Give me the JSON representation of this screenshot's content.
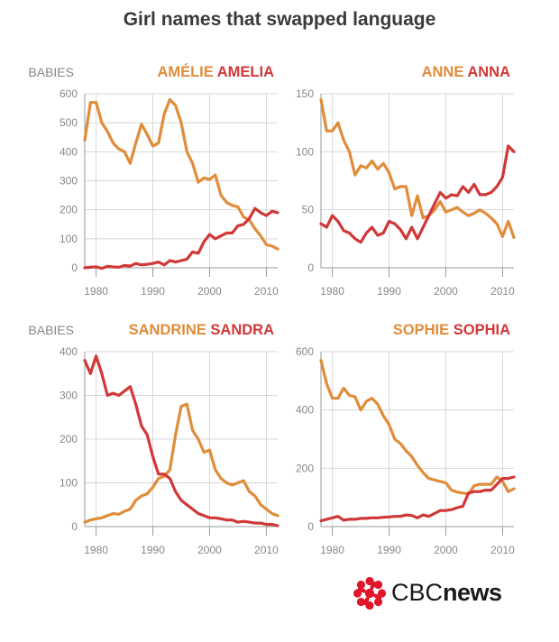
{
  "title": "Girl names that swapped language",
  "colors": {
    "french": "#e08c3a",
    "english": "#d03838",
    "grid": "#d8d8d8",
    "axis": "#999999",
    "tick": "#888888",
    "logo_red": "#e0162b"
  },
  "logo": {
    "brand": "CBC",
    "word": "news",
    "icon": "cbc-gem-icon"
  },
  "chart_data": [
    {
      "type": "line",
      "ylabel": "BABIES",
      "ylim": [
        0,
        600
      ],
      "yticks": [
        0,
        100,
        200,
        300,
        400,
        500,
        600
      ],
      "xlim": [
        1978,
        2012
      ],
      "xticks": [
        1980,
        1990,
        2000,
        2010
      ],
      "grid": true,
      "legend": "top-right",
      "series": [
        {
          "name": "AMÉLIE",
          "lang": "french",
          "x": [
            1978,
            1979,
            1980,
            1981,
            1982,
            1983,
            1984,
            1985,
            1986,
            1987,
            1988,
            1989,
            1990,
            1991,
            1992,
            1993,
            1994,
            1995,
            1996,
            1997,
            1998,
            1999,
            2000,
            2001,
            2002,
            2003,
            2004,
            2005,
            2006,
            2007,
            2008,
            2009,
            2010,
            2011,
            2012
          ],
          "values": [
            440,
            570,
            570,
            500,
            470,
            430,
            410,
            400,
            360,
            430,
            495,
            460,
            420,
            430,
            530,
            580,
            560,
            500,
            400,
            360,
            295,
            310,
            305,
            320,
            250,
            225,
            215,
            210,
            175,
            165,
            135,
            110,
            80,
            75,
            65
          ]
        },
        {
          "name": "AMELIA",
          "lang": "english",
          "x": [
            1978,
            1979,
            1980,
            1981,
            1982,
            1983,
            1984,
            1985,
            1986,
            1987,
            1988,
            1989,
            1990,
            1991,
            1992,
            1993,
            1994,
            1995,
            1996,
            1997,
            1998,
            1999,
            2000,
            2001,
            2002,
            2003,
            2004,
            2005,
            2006,
            2007,
            2008,
            2009,
            2010,
            2011,
            2012
          ],
          "values": [
            0,
            2,
            3,
            -2,
            5,
            3,
            2,
            8,
            6,
            15,
            10,
            12,
            15,
            20,
            10,
            25,
            20,
            25,
            30,
            55,
            50,
            90,
            115,
            100,
            110,
            120,
            120,
            145,
            150,
            170,
            205,
            190,
            180,
            195,
            190
          ]
        }
      ]
    },
    {
      "type": "line",
      "ylabel": "",
      "ylim": [
        0,
        150
      ],
      "yticks": [
        0,
        50,
        100,
        150
      ],
      "xlim": [
        1978,
        2012
      ],
      "xticks": [
        1980,
        1990,
        2000,
        2010
      ],
      "grid": true,
      "legend": "top-right",
      "series": [
        {
          "name": "ANNE",
          "lang": "french",
          "x": [
            1978,
            1979,
            1980,
            1981,
            1982,
            1983,
            1984,
            1985,
            1986,
            1987,
            1988,
            1989,
            1990,
            1991,
            1992,
            1993,
            1994,
            1995,
            1996,
            1997,
            1998,
            1999,
            2000,
            2001,
            2002,
            2003,
            2004,
            2005,
            2006,
            2007,
            2008,
            2009,
            2010,
            2011,
            2012
          ],
          "values": [
            145,
            118,
            118,
            125,
            110,
            100,
            80,
            88,
            86,
            92,
            85,
            90,
            82,
            68,
            70,
            70,
            45,
            62,
            43,
            45,
            50,
            57,
            48,
            50,
            52,
            48,
            45,
            47,
            50,
            47,
            43,
            38,
            27,
            40,
            26
          ]
        },
        {
          "name": "ANNA",
          "lang": "english",
          "x": [
            1978,
            1979,
            1980,
            1981,
            1982,
            1983,
            1984,
            1985,
            1986,
            1987,
            1988,
            1989,
            1990,
            1991,
            1992,
            1993,
            1994,
            1995,
            1996,
            1997,
            1998,
            1999,
            2000,
            2001,
            2002,
            2003,
            2004,
            2005,
            2006,
            2007,
            2008,
            2009,
            2010,
            2011,
            2012
          ],
          "values": [
            38,
            35,
            45,
            40,
            32,
            30,
            25,
            22,
            30,
            35,
            28,
            30,
            40,
            38,
            33,
            25,
            35,
            25,
            35,
            45,
            55,
            65,
            60,
            63,
            62,
            70,
            65,
            72,
            63,
            63,
            65,
            70,
            78,
            105,
            100
          ]
        }
      ]
    },
    {
      "type": "line",
      "ylabel": "BABIES",
      "ylim": [
        0,
        400
      ],
      "yticks": [
        0,
        100,
        200,
        300,
        400
      ],
      "xlim": [
        1978,
        2012
      ],
      "xticks": [
        1980,
        1990,
        2000,
        2010
      ],
      "grid": true,
      "legend": "top-right",
      "series": [
        {
          "name": "SANDRINE",
          "lang": "french",
          "x": [
            1978,
            1979,
            1980,
            1981,
            1982,
            1983,
            1984,
            1985,
            1986,
            1987,
            1988,
            1989,
            1990,
            1991,
            1992,
            1993,
            1994,
            1995,
            1996,
            1997,
            1998,
            1999,
            2000,
            2001,
            2002,
            2003,
            2004,
            2005,
            2006,
            2007,
            2008,
            2009,
            2010,
            2011,
            2012
          ],
          "values": [
            10,
            15,
            18,
            20,
            25,
            30,
            28,
            35,
            40,
            60,
            70,
            75,
            90,
            110,
            115,
            130,
            210,
            275,
            280,
            220,
            200,
            170,
            175,
            130,
            110,
            100,
            95,
            100,
            105,
            80,
            70,
            50,
            40,
            30,
            25
          ]
        },
        {
          "name": "SANDRA",
          "lang": "english",
          "x": [
            1978,
            1979,
            1980,
            1981,
            1982,
            1983,
            1984,
            1985,
            1986,
            1987,
            1988,
            1989,
            1990,
            1991,
            1992,
            1993,
            1994,
            1995,
            1996,
            1997,
            1998,
            1999,
            2000,
            2001,
            2002,
            2003,
            2004,
            2005,
            2006,
            2007,
            2008,
            2009,
            2010,
            2011,
            2012
          ],
          "values": [
            380,
            350,
            390,
            350,
            300,
            305,
            300,
            310,
            320,
            280,
            230,
            210,
            160,
            120,
            120,
            110,
            80,
            60,
            50,
            40,
            30,
            25,
            20,
            20,
            18,
            15,
            15,
            10,
            12,
            10,
            8,
            8,
            5,
            5,
            2
          ]
        }
      ]
    },
    {
      "type": "line",
      "ylabel": "",
      "ylim": [
        0,
        600
      ],
      "yticks": [
        0,
        200,
        400,
        600
      ],
      "xlim": [
        1978,
        2012
      ],
      "xticks": [
        1980,
        1990,
        2000,
        2010
      ],
      "grid": true,
      "legend": "top-right",
      "series": [
        {
          "name": "SOPHIE",
          "lang": "french",
          "x": [
            1978,
            1979,
            1980,
            1981,
            1982,
            1983,
            1984,
            1985,
            1986,
            1987,
            1988,
            1989,
            1990,
            1991,
            1992,
            1993,
            1994,
            1995,
            1996,
            1997,
            1998,
            1999,
            2000,
            2001,
            2002,
            2003,
            2004,
            2005,
            2006,
            2007,
            2008,
            2009,
            2010,
            2011,
            2012
          ],
          "values": [
            570,
            490,
            440,
            440,
            475,
            450,
            445,
            400,
            430,
            440,
            420,
            380,
            350,
            300,
            285,
            260,
            240,
            210,
            185,
            165,
            160,
            155,
            150,
            125,
            118,
            115,
            112,
            140,
            145,
            145,
            145,
            170,
            155,
            120,
            130
          ]
        },
        {
          "name": "SOPHIA",
          "lang": "english",
          "x": [
            1978,
            1979,
            1980,
            1981,
            1982,
            1983,
            1984,
            1985,
            1986,
            1987,
            1988,
            1989,
            1990,
            1991,
            1992,
            1993,
            1994,
            1995,
            1996,
            1997,
            1998,
            1999,
            2000,
            2001,
            2002,
            2003,
            2004,
            2005,
            2006,
            2007,
            2008,
            2009,
            2010,
            2011,
            2012
          ],
          "values": [
            20,
            25,
            30,
            35,
            22,
            25,
            25,
            28,
            28,
            30,
            30,
            32,
            33,
            35,
            35,
            40,
            38,
            30,
            40,
            35,
            45,
            55,
            55,
            58,
            65,
            70,
            115,
            120,
            120,
            125,
            125,
            145,
            165,
            165,
            170
          ]
        }
      ]
    }
  ]
}
